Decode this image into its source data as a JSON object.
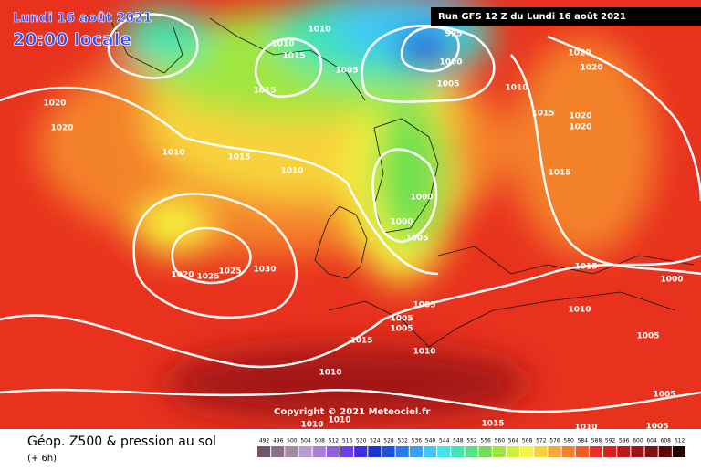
{
  "header": {
    "title": "Lundi 16 août 2021",
    "subtitle": "20:00 locale"
  },
  "run_info": "Run GFS 12 Z du Lundi 16 août 2021",
  "copyright": "Copyright © 2021 Meteociel.fr",
  "legend": {
    "title": "Géop. Z500 & pression au sol",
    "subtitle": "(+ 6h)",
    "scale": [
      {
        "value": 492,
        "color": "#6e566e"
      },
      {
        "value": 496,
        "color": "#8a6e8a"
      },
      {
        "value": 500,
        "color": "#a38aa3"
      },
      {
        "value": 504,
        "color": "#b89cc9"
      },
      {
        "value": 508,
        "color": "#a87fd8"
      },
      {
        "value": 512,
        "color": "#8f5fe6"
      },
      {
        "value": 516,
        "color": "#6a3fe8"
      },
      {
        "value": 520,
        "color": "#3f2fe0"
      },
      {
        "value": 524,
        "color": "#2030d8"
      },
      {
        "value": 528,
        "color": "#1e50e6"
      },
      {
        "value": 532,
        "color": "#2a78f0"
      },
      {
        "value": 536,
        "color": "#3aa0f5"
      },
      {
        "value": 540,
        "color": "#40c8f5"
      },
      {
        "value": 544,
        "color": "#40e6e6"
      },
      {
        "value": 548,
        "color": "#40e6b0"
      },
      {
        "value": 552,
        "color": "#50e680"
      },
      {
        "value": 556,
        "color": "#70e050"
      },
      {
        "value": 560,
        "color": "#a0e640"
      },
      {
        "value": 564,
        "color": "#d0ee40"
      },
      {
        "value": 568,
        "color": "#f6f43c"
      },
      {
        "value": 572,
        "color": "#f8d23a"
      },
      {
        "value": 576,
        "color": "#f8a832"
      },
      {
        "value": 580,
        "color": "#f4822a"
      },
      {
        "value": 584,
        "color": "#f05a24"
      },
      {
        "value": 588,
        "color": "#e8321e"
      },
      {
        "value": 592,
        "color": "#d8201c"
      },
      {
        "value": 596,
        "color": "#c0181a"
      },
      {
        "value": 600,
        "color": "#a01418"
      },
      {
        "value": 604,
        "color": "#801012"
      },
      {
        "value": 608,
        "color": "#580a0c"
      },
      {
        "value": 612,
        "color": "#200404"
      }
    ]
  },
  "isobar_labels": [
    "1010",
    "1010",
    "1015",
    "1005",
    "995",
    "1000",
    "1005",
    "1010",
    "1020",
    "1020",
    "1015",
    "1020",
    "1020",
    "1015",
    "1020",
    "1020",
    "1010",
    "1015",
    "1010",
    "1015",
    "1000",
    "1000",
    "1005",
    "1020",
    "1025",
    "1025",
    "1030",
    "1015",
    "1000",
    "1005",
    "1010",
    "1005",
    "1005",
    "1015",
    "1010",
    "1005",
    "1010",
    "1005",
    "1010",
    "1010",
    "1015",
    "1010",
    "1005"
  ]
}
